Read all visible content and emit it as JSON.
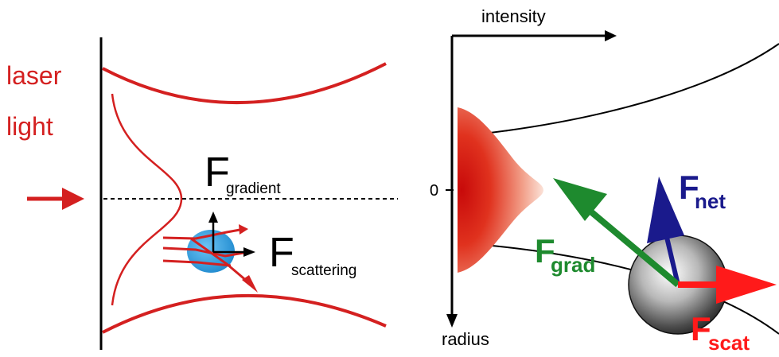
{
  "left_panel": {
    "laser_line1": "laser",
    "laser_line2": "light",
    "f_gradient_main": "F",
    "f_gradient_sub": "gradient",
    "f_scattering_main": "F",
    "f_scattering_sub": "scattering"
  },
  "right_panel": {
    "axis_x_label": "intensity",
    "axis_y_label": "radius",
    "zero_label": "0",
    "f_net_main": "F",
    "f_net_sub": "net",
    "f_grad_main": "F",
    "f_grad_sub": "grad",
    "f_scat_main": "F",
    "f_scat_sub": "scat"
  },
  "colors": {
    "laser_red": "#d42020",
    "bright_red": "#ff1a1a",
    "green": "#1e8a2e",
    "navy": "#1a1a8c",
    "particle_blue": "#2a9ee0",
    "black": "#000000"
  }
}
